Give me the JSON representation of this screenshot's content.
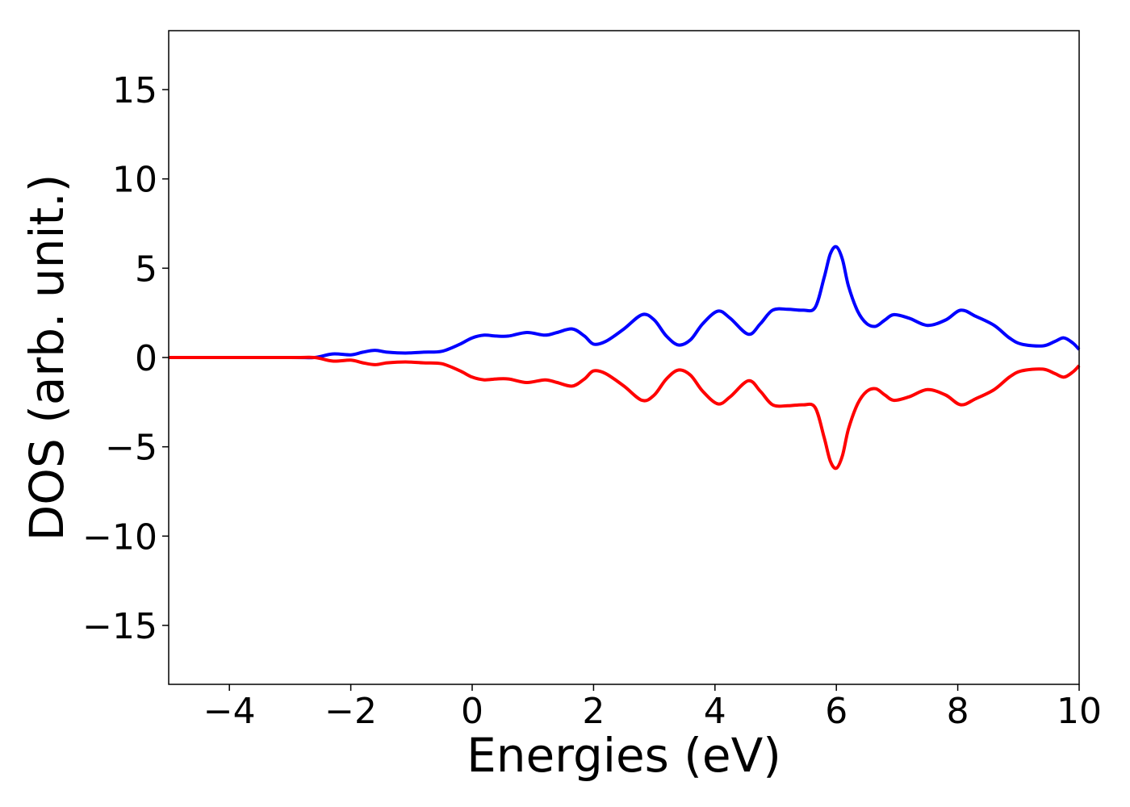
{
  "chart_data": {
    "type": "line",
    "title": "",
    "xlabel": "Energies (eV)",
    "ylabel": "DOS (arb. unit.)",
    "xlim": [
      -5,
      10
    ],
    "ylim": [
      -18.3,
      18.3
    ],
    "xticks": [
      -4,
      -2,
      0,
      2,
      4,
      6,
      8,
      10
    ],
    "yticks": [
      -15,
      -10,
      -5,
      0,
      5,
      10,
      15
    ],
    "xtick_labels": [
      "−4",
      "−2",
      "0",
      "2",
      "4",
      "6",
      "8",
      "10"
    ],
    "ytick_labels": [
      "−15",
      "−10",
      "−5",
      "0",
      "5",
      "10",
      "15"
    ],
    "grid": false,
    "legend": "none",
    "x": [
      -5.0,
      -3.0,
      -2.6,
      -2.3,
      -2.0,
      -1.8,
      -1.6,
      -1.4,
      -1.1,
      -0.8,
      -0.5,
      -0.2,
      0.0,
      0.2,
      0.4,
      0.6,
      0.9,
      1.2,
      1.4,
      1.65,
      1.85,
      2.0,
      2.2,
      2.5,
      2.8,
      3.0,
      3.2,
      3.4,
      3.6,
      3.8,
      4.05,
      4.25,
      4.55,
      4.75,
      4.95,
      5.2,
      5.45,
      5.65,
      5.8,
      5.9,
      6.0,
      6.1,
      6.2,
      6.35,
      6.5,
      6.65,
      6.8,
      6.95,
      7.2,
      7.5,
      7.8,
      8.05,
      8.3,
      8.6,
      8.85,
      9.05,
      9.4,
      9.6,
      9.75,
      9.9,
      10.0
    ],
    "series": [
      {
        "color": "#0000ff",
        "values": [
          0.0,
          0.0,
          0.0,
          0.2,
          0.15,
          0.3,
          0.4,
          0.3,
          0.25,
          0.3,
          0.35,
          0.75,
          1.1,
          1.25,
          1.2,
          1.2,
          1.4,
          1.25,
          1.4,
          1.6,
          1.2,
          0.75,
          0.9,
          1.6,
          2.4,
          2.1,
          1.2,
          0.7,
          1.0,
          1.9,
          2.6,
          2.2,
          1.3,
          1.9,
          2.65,
          2.7,
          2.65,
          2.8,
          4.5,
          5.8,
          6.2,
          5.5,
          4.0,
          2.6,
          1.9,
          1.75,
          2.1,
          2.4,
          2.2,
          1.8,
          2.1,
          2.65,
          2.3,
          1.8,
          1.1,
          0.75,
          0.65,
          0.9,
          1.1,
          0.8,
          0.45
        ]
      },
      {
        "color": "#ff0000",
        "values": [
          0.0,
          0.0,
          0.0,
          -0.2,
          -0.15,
          -0.3,
          -0.4,
          -0.3,
          -0.25,
          -0.3,
          -0.35,
          -0.75,
          -1.1,
          -1.25,
          -1.2,
          -1.2,
          -1.4,
          -1.25,
          -1.4,
          -1.6,
          -1.2,
          -0.75,
          -0.9,
          -1.6,
          -2.4,
          -2.1,
          -1.2,
          -0.7,
          -1.0,
          -1.9,
          -2.6,
          -2.2,
          -1.3,
          -1.9,
          -2.65,
          -2.7,
          -2.65,
          -2.8,
          -4.5,
          -5.8,
          -6.2,
          -5.5,
          -4.0,
          -2.6,
          -1.9,
          -1.75,
          -2.1,
          -2.4,
          -2.2,
          -1.8,
          -2.1,
          -2.65,
          -2.3,
          -1.8,
          -1.1,
          -0.75,
          -0.65,
          -0.9,
          -1.1,
          -0.8,
          -0.45
        ]
      }
    ]
  }
}
